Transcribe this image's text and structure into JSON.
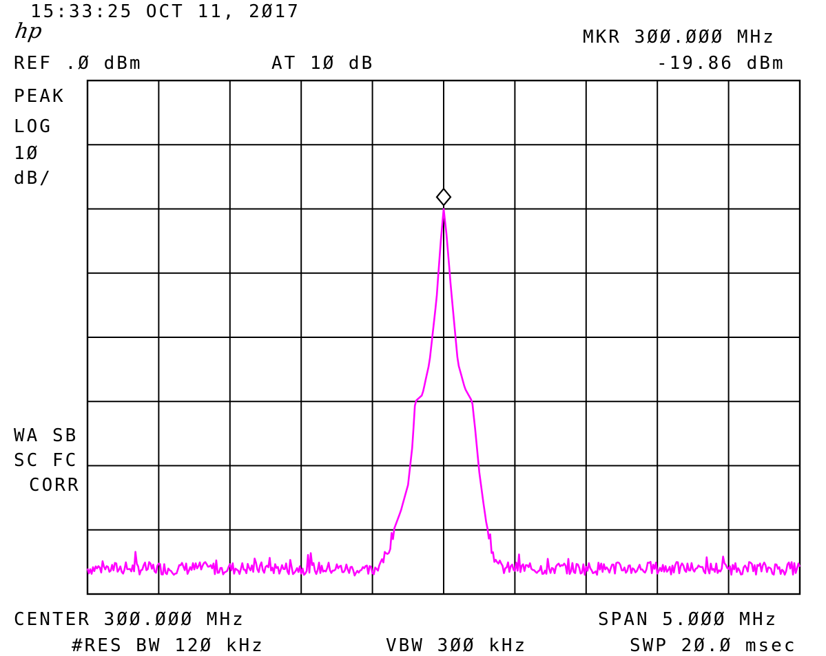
{
  "header": {
    "timestamp": "15:33:25 OCT 11, 2Ø17",
    "logo": "hp",
    "marker_freq": "MKR 3ØØ.ØØØ MHz",
    "ref_level": "REF .Ø dBm",
    "attenuation": "AT 1Ø dB",
    "marker_level": "-19.86 dBm"
  },
  "left_annotations": {
    "detector": "PEAK",
    "scale_type": "LOG",
    "scale_value": "1Ø",
    "scale_unit": "dB/",
    "flags_line1": "WA SB",
    "flags_line2": "SC FC",
    "flags_line3": "CORR"
  },
  "footer": {
    "center": "CENTER 3ØØ.ØØØ MHz",
    "span": "SPAN 5.ØØØ MHz",
    "rbw": "#RES BW 12Ø kHz",
    "vbw": "VBW 3ØØ kHz",
    "sweep": "SWP 2Ø.Ø msec"
  },
  "colors": {
    "trace": "#ff00ff",
    "grid": "#000000",
    "background": "#ffffff"
  },
  "chart_data": {
    "type": "line",
    "x_unit": "MHz",
    "y_unit": "dBm",
    "xlim": [
      297.5,
      302.5
    ],
    "ylim": [
      -80,
      0
    ],
    "x_divisions": 10,
    "y_divisions": 8,
    "grid": true,
    "marker": {
      "x": 300.0,
      "y": -19.86,
      "symbol": "diamond"
    },
    "series": [
      {
        "x": [
          297.5,
          297.75,
          298.0,
          298.25,
          298.5,
          298.75,
          299.0,
          299.25,
          299.5,
          299.6,
          299.65,
          299.7,
          299.75,
          299.78,
          299.8,
          299.85,
          299.9,
          299.95,
          299.98,
          300.0,
          300.02,
          300.05,
          300.1,
          300.15,
          300.2,
          300.22,
          300.25,
          300.28,
          300.3,
          300.32,
          300.35,
          300.4,
          300.5,
          300.75,
          301.0,
          301.25,
          301.5,
          301.75,
          302.0,
          302.25,
          302.5
        ],
        "y": [
          -76,
          -76,
          -76,
          -76,
          -76,
          -76,
          -76,
          -76,
          -76.5,
          -74,
          -70,
          -67,
          -63,
          -57,
          -50,
          -49,
          -44,
          -34,
          -25,
          -20,
          -24,
          -32,
          -44,
          -48,
          -50,
          -54,
          -61,
          -66,
          -69,
          -71,
          -74,
          -76,
          -76,
          -76,
          -76,
          -76,
          -76,
          -76,
          -76,
          -76,
          -76
        ]
      }
    ]
  }
}
